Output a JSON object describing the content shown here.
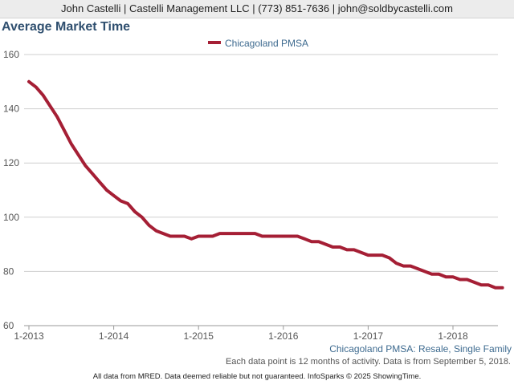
{
  "header": {
    "contact": "John Castelli | Castelli Management LLC | (773) 851-7636 | john@soldbycastelli.com"
  },
  "chart_title": "Average Market Time",
  "series_caption": "Chicagoland PMSA: Resale, Single Family",
  "footer": {
    "note": "Each data point is 12 months of activity. Data is from September 5, 2018.",
    "disclaimer": "All data from MRED. Data deemed reliable but not guaranteed. InfoSparks © 2025 ShowingTime."
  },
  "colors": {
    "series": "#a51f35",
    "grid": "#cfcfcf",
    "title": "#2f4f6f",
    "caption": "#3d6a8f"
  },
  "chart_data": {
    "type": "line",
    "title": "Average Market Time",
    "xlabel": "",
    "ylabel": "",
    "ylim": [
      60,
      160
    ],
    "yticks": [
      60,
      80,
      100,
      120,
      140,
      160
    ],
    "xticks": [
      "1-2013",
      "1-2014",
      "1-2015",
      "1-2016",
      "1-2017",
      "1-2018"
    ],
    "grid": true,
    "legend_position": "top-center",
    "series": [
      {
        "name": "Chicagoland PMSA",
        "x": [
          "1-2013",
          "2-2013",
          "3-2013",
          "4-2013",
          "5-2013",
          "6-2013",
          "7-2013",
          "8-2013",
          "9-2013",
          "10-2013",
          "11-2013",
          "12-2013",
          "1-2014",
          "2-2014",
          "3-2014",
          "4-2014",
          "5-2014",
          "6-2014",
          "7-2014",
          "8-2014",
          "9-2014",
          "10-2014",
          "11-2014",
          "12-2014",
          "1-2015",
          "2-2015",
          "3-2015",
          "4-2015",
          "5-2015",
          "6-2015",
          "7-2015",
          "8-2015",
          "9-2015",
          "10-2015",
          "11-2015",
          "12-2015",
          "1-2016",
          "2-2016",
          "3-2016",
          "4-2016",
          "5-2016",
          "6-2016",
          "7-2016",
          "8-2016",
          "9-2016",
          "10-2016",
          "11-2016",
          "12-2016",
          "1-2017",
          "2-2017",
          "3-2017",
          "4-2017",
          "5-2017",
          "6-2017",
          "7-2017",
          "8-2017",
          "9-2017",
          "10-2017",
          "11-2017",
          "12-2017",
          "1-2018",
          "2-2018",
          "3-2018",
          "4-2018",
          "5-2018",
          "6-2018",
          "7-2018",
          "8-2018"
        ],
        "values": [
          150,
          148,
          145,
          141,
          137,
          132,
          127,
          123,
          119,
          116,
          113,
          110,
          108,
          106,
          105,
          102,
          100,
          97,
          95,
          94,
          93,
          93,
          93,
          92,
          93,
          93,
          93,
          94,
          94,
          94,
          94,
          94,
          94,
          93,
          93,
          93,
          93,
          93,
          93,
          92,
          91,
          91,
          90,
          89,
          89,
          88,
          88,
          87,
          86,
          86,
          86,
          85,
          83,
          82,
          82,
          81,
          80,
          79,
          79,
          78,
          78,
          77,
          77,
          76,
          75,
          75,
          74,
          74
        ]
      }
    ]
  }
}
